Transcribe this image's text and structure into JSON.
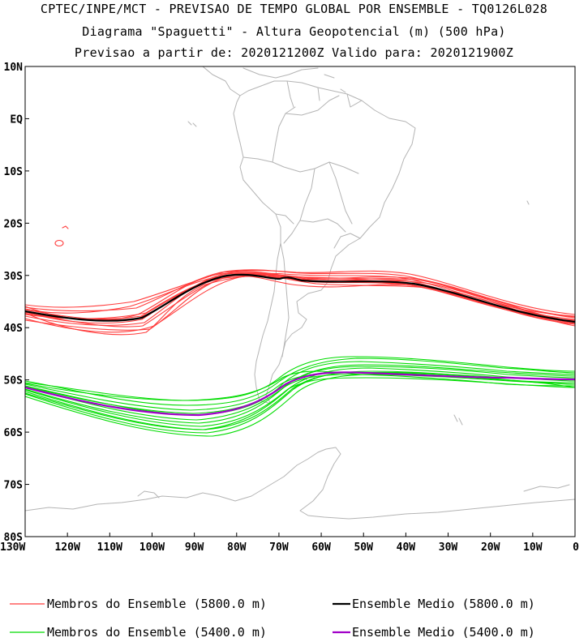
{
  "header": {
    "line1": "CPTEC/INPE/MCT - PREVISAO DE TEMPO GLOBAL POR ENSEMBLE - TQ0126L028",
    "line2": "Diagrama \"Spaguetti\" - Altura Geopotencial (m) (500 hPa)",
    "line3": "Previsao a partir de: 2020121200Z  Valido para: 2020121900Z"
  },
  "map": {
    "lat_labels": [
      "10N",
      "EQ",
      "10S",
      "20S",
      "30S",
      "40S",
      "50S",
      "60S",
      "70S",
      "80S"
    ],
    "lon_labels": [
      "130W",
      "120W",
      "110W",
      "100W",
      "90W",
      "80W",
      "70W",
      "60W",
      "50W",
      "40W",
      "30W",
      "20W",
      "10W",
      "0"
    ],
    "colors": {
      "coast": "#b4b4b4",
      "member_5800": "#ff3c3c",
      "mean_5800": "#000000",
      "member_5400": "#00dc00",
      "mean_5400": "#a000c8"
    }
  },
  "legend": {
    "members_5800": "Membros do Ensemble (5800.0 m)",
    "mean_5800": "Ensemble Medio (5800.0 m)",
    "members_5400": "Membros do Ensemble (5400.0 m)",
    "mean_5400": "Ensemble Medio (5400.0 m)"
  }
}
